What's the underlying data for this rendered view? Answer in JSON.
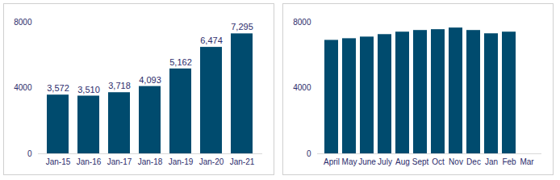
{
  "chart_data": [
    {
      "type": "bar",
      "categories": [
        "Jan-15",
        "Jan-16",
        "Jan-17",
        "Jan-18",
        "Jan-19",
        "Jan-20",
        "Jan-21"
      ],
      "values": [
        3572,
        3510,
        3718,
        4093,
        5162,
        6474,
        7295
      ],
      "value_labels": [
        "3,572",
        "3,510",
        "3,718",
        "4,093",
        "5,162",
        "6,474",
        "7,295"
      ],
      "data_labels": true,
      "color": "#004b6e",
      "ylim": [
        0,
        8000
      ],
      "yticks": [
        0,
        4000,
        8000
      ],
      "grid": false
    },
    {
      "type": "bar",
      "categories": [
        "April",
        "May",
        "June",
        "July",
        "Aug",
        "Sept",
        "Oct",
        "Nov",
        "Dec",
        "Jan",
        "Feb",
        "Mar"
      ],
      "values": [
        6900,
        7000,
        7100,
        7250,
        7400,
        7500,
        7550,
        7650,
        7500,
        7300,
        7400,
        null
      ],
      "data_labels": false,
      "color": "#004b6e",
      "ylim": [
        0,
        8000
      ],
      "yticks": [
        0,
        4000,
        8000
      ],
      "grid": false
    }
  ]
}
